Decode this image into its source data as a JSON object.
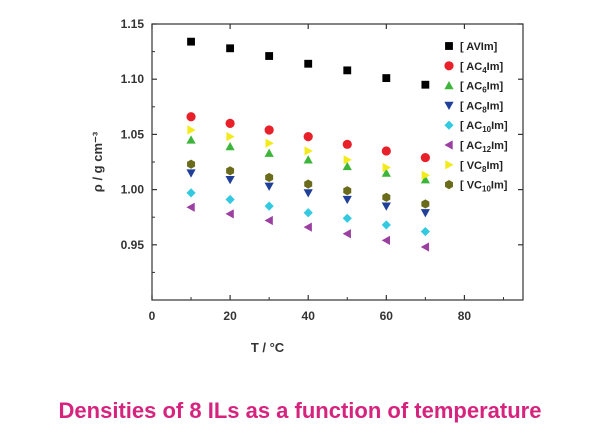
{
  "caption": "Densities of 8 ILs as a function of temperature",
  "colors": {
    "caption": "#d6247e",
    "axis": "#333333"
  },
  "chart_data": {
    "type": "scatter",
    "title": "",
    "xlabel": "T / °C",
    "ylabel": "ρ / g cm⁻³",
    "xlim": [
      0,
      95
    ],
    "ylim": [
      0.9,
      1.15
    ],
    "xticks": [
      0,
      20,
      40,
      60,
      80
    ],
    "yticks": [
      0.95,
      1.0,
      1.05,
      1.1,
      1.15
    ],
    "xtick_labels": [
      "0",
      "20",
      "40",
      "60",
      "80"
    ],
    "ytick_labels": [
      "0.95",
      "1.00",
      "1.05",
      "1.10",
      "1.15"
    ],
    "grid": false,
    "legend_position": "top-right",
    "x": [
      10,
      20,
      30,
      40,
      50,
      60,
      70
    ],
    "series": [
      {
        "name": "[ AVIm]",
        "name_parts": [
          "[ AVIm]"
        ],
        "marker": "square",
        "color": "#000000",
        "values": [
          1.134,
          1.128,
          1.121,
          1.114,
          1.108,
          1.101,
          1.095
        ]
      },
      {
        "name": "[ AC4Im]",
        "name_parts": [
          "[ AC",
          "4",
          "Im]"
        ],
        "marker": "circle",
        "color": "#e8202a",
        "values": [
          1.066,
          1.06,
          1.054,
          1.048,
          1.041,
          1.035,
          1.029
        ]
      },
      {
        "name": "[ AC6Im]",
        "name_parts": [
          "[ AC",
          "6",
          "Im]"
        ],
        "marker": "triangle-up",
        "color": "#3cb53a",
        "values": [
          1.045,
          1.039,
          1.033,
          1.027,
          1.021,
          1.015,
          1.009
        ]
      },
      {
        "name": "[ AC8Im]",
        "name_parts": [
          "[ AC",
          "8",
          "Im]"
        ],
        "marker": "triangle-down",
        "color": "#1f3f99",
        "values": [
          1.015,
          1.009,
          1.003,
          0.997,
          0.991,
          0.985,
          0.979
        ]
      },
      {
        "name": "[ AC10Im]",
        "name_parts": [
          "[ AC",
          "10",
          "Im]"
        ],
        "marker": "diamond",
        "color": "#33c9e0",
        "values": [
          0.997,
          0.991,
          0.985,
          0.979,
          0.974,
          0.968,
          0.962
        ]
      },
      {
        "name": "[ AC12Im]",
        "name_parts": [
          "[ AC",
          "12",
          "Im]"
        ],
        "marker": "triangle-left",
        "color": "#9b3fa1",
        "values": [
          0.984,
          0.978,
          0.972,
          0.966,
          0.96,
          0.954,
          0.948
        ]
      },
      {
        "name": "[ VC8Im]",
        "name_parts": [
          "[ VC",
          "8",
          "Im]"
        ],
        "marker": "triangle-right",
        "color": "#f2ea1b",
        "values": [
          1.054,
          1.048,
          1.042,
          1.035,
          1.027,
          1.02,
          1.013
        ]
      },
      {
        "name": "[ VC10Im]",
        "name_parts": [
          "[ VC",
          "10",
          "Im]"
        ],
        "marker": "hexagon",
        "color": "#6b6b1c",
        "values": [
          1.023,
          1.017,
          1.011,
          1.005,
          0.999,
          0.993,
          0.987
        ]
      }
    ]
  }
}
